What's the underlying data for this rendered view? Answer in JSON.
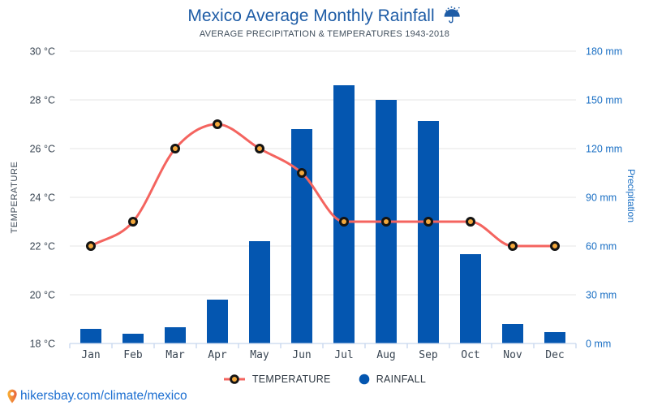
{
  "header": {
    "title": "Mexico Average Monthly Rainfall",
    "subtitle": "AVERAGE PRECIPITATION & TEMPERATURES 1943-2018",
    "title_icon": "umbrella-rain-icon"
  },
  "chart_data": {
    "type": "bar+line combo",
    "title": "Mexico Average Monthly Rainfall",
    "subtitle": "AVERAGE PRECIPITATION & TEMPERATURES 1943-2018",
    "categories": [
      "Jan",
      "Feb",
      "Mar",
      "Apr",
      "May",
      "Jun",
      "Jul",
      "Aug",
      "Sep",
      "Oct",
      "Nov",
      "Dec"
    ],
    "series": [
      {
        "name": "TEMPERATURE",
        "type": "line",
        "axis": "left",
        "unit": "°C",
        "color": "#f4645f",
        "marker_fill": "#f3a83c",
        "marker_stroke": "#141414",
        "values": [
          22,
          23,
          26,
          27,
          26,
          25,
          23,
          23,
          23,
          23,
          22,
          22
        ]
      },
      {
        "name": "RAINFALL",
        "type": "bar",
        "axis": "right",
        "unit": "mm",
        "color": "#0456b0",
        "values": [
          9,
          6,
          10,
          27,
          63,
          132,
          159,
          150,
          137,
          55,
          12,
          7
        ]
      }
    ],
    "left_axis": {
      "title": "TEMPERATURE",
      "min": 18,
      "max": 30,
      "tick_step": 2,
      "ticks": [
        "30 °C",
        "28 °C",
        "26 °C",
        "24 °C",
        "22 °C",
        "20 °C",
        "18 °C"
      ]
    },
    "right_axis": {
      "title": "Precipitation",
      "min": 0,
      "max": 180,
      "tick_step": 30,
      "ticks": [
        "180 mm",
        "150 mm",
        "120 mm",
        "90 mm",
        "60 mm",
        "30 mm",
        "0 mm"
      ]
    },
    "grid": true,
    "legend_position": "bottom"
  },
  "legend": {
    "temperature_label": "TEMPERATURE",
    "rainfall_label": "RAINFALL"
  },
  "footer": {
    "link": "hikersbay.com/climate/mexico",
    "icon": "location-pin-icon"
  },
  "colors": {
    "bar": "#0456b0",
    "line": "#f4645f",
    "marker_fill": "#f3a83c",
    "marker_stroke": "#141414",
    "grid": "#e6e6e6",
    "axis_line": "#c7d6ee",
    "title": "#1e5ca6",
    "subtitle": "#42505e",
    "left_ticks": "#3b4754",
    "right_ticks": "#1a6fc4",
    "footer_link": "#1d6fd1",
    "pin": "#f0883b"
  }
}
